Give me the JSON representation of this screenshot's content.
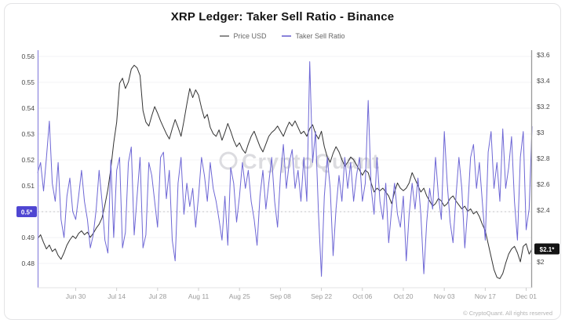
{
  "header": {
    "title": "XRP Ledger: Taker Sell Ratio - Binance"
  },
  "legend": {
    "items": [
      {
        "label": "Price USD",
        "color": "#8c8c8c"
      },
      {
        "label": "Taker Sell Ratio",
        "color": "#8a83da"
      }
    ]
  },
  "watermark": {
    "text": "CryptoQuant"
  },
  "footer": {
    "text": "© CryptoQuant. All rights reserved"
  },
  "chart_data": {
    "type": "line",
    "title": "XRP Ledger: Taker Sell Ratio - Binance",
    "legend_position": "top",
    "grid": "horizontal-faint",
    "x_axis": {
      "tick_labels": [
        "Jun 30",
        "Jul 14",
        "Jul 28",
        "Aug 11",
        "Aug 25",
        "Sep 08",
        "Sep 22",
        "Oct 06",
        "Oct 20",
        "Nov 03",
        "Nov 17",
        "Dec 01"
      ],
      "tick_day_index": [
        13,
        27,
        41,
        55,
        69,
        83,
        97,
        111,
        125,
        139,
        153,
        167
      ]
    },
    "left_axis": {
      "name": "Taker Sell Ratio",
      "color": "#6e67d5",
      "range": [
        0.4715,
        0.5621
      ],
      "ticks": [
        {
          "label": "0.56",
          "value": 0.56
        },
        {
          "label": "0.55",
          "value": 0.55
        },
        {
          "label": "0.54",
          "value": 0.54
        },
        {
          "label": "0.53",
          "value": 0.53
        },
        {
          "label": "0.52",
          "value": 0.52
        },
        {
          "label": "0.51",
          "value": 0.51
        },
        {
          "label": "0.49",
          "value": 0.49
        },
        {
          "label": "0.48",
          "value": 0.48
        }
      ],
      "badge": {
        "label": "0.5*",
        "value": 0.5,
        "color": "#4f46d2"
      },
      "current_value_line": 0.5
    },
    "right_axis": {
      "name": "Price USD",
      "color": "#333333",
      "range": [
        1.81,
        3.63
      ],
      "ticks": [
        {
          "label": "$3.6",
          "value": 3.6
        },
        {
          "label": "$3.4",
          "value": 3.4
        },
        {
          "label": "$3.2",
          "value": 3.2
        },
        {
          "label": "$3",
          "value": 3.0
        },
        {
          "label": "$2.8",
          "value": 2.8
        },
        {
          "label": "$2.6",
          "value": 2.6
        },
        {
          "label": "$2.4",
          "value": 2.4
        },
        {
          "label": "$2",
          "value": 2.0
        }
      ],
      "badge": {
        "label": "$2.1*",
        "value": 2.1,
        "color": "#141414"
      }
    },
    "series": [
      {
        "name": "Price USD",
        "axis": "right",
        "color": "#333333",
        "values": [
          2.18,
          2.21,
          2.15,
          2.1,
          2.13,
          2.08,
          2.1,
          2.05,
          2.02,
          2.07,
          2.13,
          2.17,
          2.2,
          2.18,
          2.22,
          2.24,
          2.21,
          2.23,
          2.19,
          2.22,
          2.26,
          2.29,
          2.34,
          2.44,
          2.56,
          2.72,
          2.92,
          3.08,
          3.38,
          3.42,
          3.34,
          3.39,
          3.49,
          3.52,
          3.5,
          3.44,
          3.17,
          3.08,
          3.05,
          3.13,
          3.2,
          3.15,
          3.09,
          3.04,
          2.99,
          2.95,
          3.03,
          3.1,
          3.04,
          2.97,
          3.09,
          3.22,
          3.34,
          3.27,
          3.33,
          3.29,
          3.19,
          3.11,
          3.14,
          3.04,
          2.99,
          2.97,
          3.02,
          2.94,
          3.0,
          3.07,
          3.01,
          2.94,
          2.89,
          2.92,
          2.87,
          2.84,
          2.91,
          2.97,
          3.01,
          2.95,
          2.89,
          2.85,
          2.91,
          2.97,
          3.0,
          3.02,
          3.05,
          3.01,
          2.97,
          3.03,
          3.08,
          3.05,
          3.09,
          3.04,
          2.99,
          3.01,
          2.97,
          3.03,
          3.06,
          2.99,
          2.95,
          3.01,
          2.89,
          2.81,
          2.77,
          2.84,
          2.89,
          2.85,
          2.79,
          2.74,
          2.77,
          2.81,
          2.79,
          2.75,
          2.71,
          2.67,
          2.71,
          2.69,
          2.61,
          2.54,
          2.57,
          2.55,
          2.57,
          2.54,
          2.51,
          2.45,
          2.54,
          2.61,
          2.57,
          2.55,
          2.57,
          2.61,
          2.69,
          2.64,
          2.59,
          2.54,
          2.57,
          2.51,
          2.47,
          2.43,
          2.45,
          2.49,
          2.47,
          2.43,
          2.45,
          2.49,
          2.51,
          2.47,
          2.44,
          2.41,
          2.43,
          2.39,
          2.41,
          2.37,
          2.39,
          2.35,
          2.29,
          2.24,
          2.14,
          2.04,
          1.94,
          1.88,
          1.87,
          1.91,
          1.99,
          2.06,
          2.1,
          2.12,
          2.07,
          2.0,
          2.12,
          2.14,
          2.06,
          2.1
        ]
      },
      {
        "name": "Taker Sell Ratio",
        "axis": "left",
        "color": "#6e67d5",
        "values": [
          0.515,
          0.519,
          0.508,
          0.521,
          0.535,
          0.511,
          0.504,
          0.519,
          0.497,
          0.49,
          0.506,
          0.513,
          0.5,
          0.497,
          0.506,
          0.516,
          0.504,
          0.497,
          0.486,
          0.491,
          0.501,
          0.516,
          0.504,
          0.489,
          0.484,
          0.52,
          0.49,
          0.516,
          0.521,
          0.486,
          0.492,
          0.519,
          0.525,
          0.491,
          0.506,
          0.521,
          0.486,
          0.491,
          0.519,
          0.514,
          0.504,
          0.494,
          0.521,
          0.523,
          0.505,
          0.516,
          0.489,
          0.481,
          0.511,
          0.521,
          0.499,
          0.511,
          0.502,
          0.509,
          0.494,
          0.506,
          0.521,
          0.514,
          0.504,
          0.519,
          0.509,
          0.504,
          0.497,
          0.489,
          0.506,
          0.487,
          0.517,
          0.511,
          0.496,
          0.506,
          0.519,
          0.509,
          0.516,
          0.504,
          0.497,
          0.487,
          0.506,
          0.516,
          0.501,
          0.511,
          0.521,
          0.504,
          0.494,
          0.514,
          0.526,
          0.509,
          0.519,
          0.524,
          0.509,
          0.516,
          0.504,
          0.521,
          0.504,
          0.558,
          0.519,
          0.531,
          0.499,
          0.475,
          0.506,
          0.521,
          0.509,
          0.483,
          0.501,
          0.514,
          0.504,
          0.521,
          0.509,
          0.519,
          0.504,
          0.514,
          0.521,
          0.504,
          0.511,
          0.543,
          0.509,
          0.499,
          0.521,
          0.504,
          0.497,
          0.511,
          0.488,
          0.501,
          0.511,
          0.499,
          0.494,
          0.506,
          0.481,
          0.499,
          0.511,
          0.501,
          0.513,
          0.499,
          0.476,
          0.496,
          0.509,
          0.501,
          0.521,
          0.506,
          0.497,
          0.531,
          0.511,
          0.496,
          0.488,
          0.506,
          0.521,
          0.509,
          0.486,
          0.501,
          0.521,
          0.526,
          0.509,
          0.519,
          0.504,
          0.489,
          0.523,
          0.531,
          0.509,
          0.519,
          0.504,
          0.532,
          0.509,
          0.517,
          0.529,
          0.504,
          0.489,
          0.521,
          0.531,
          0.493,
          0.501,
          0.533
        ]
      }
    ]
  }
}
